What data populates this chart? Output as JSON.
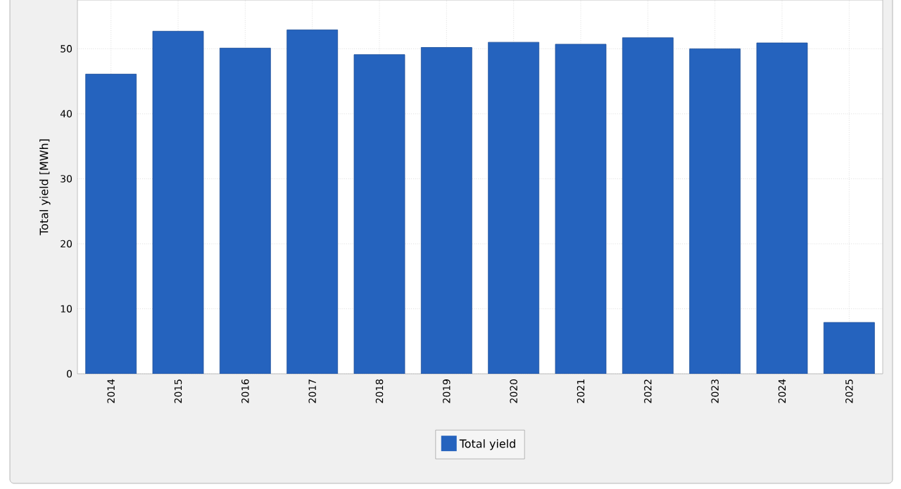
{
  "chart_data": {
    "type": "bar",
    "ylabel": "Total yield [MWh]",
    "categories": [
      "2014",
      "2015",
      "2016",
      "2017",
      "2018",
      "2019",
      "2020",
      "2021",
      "2022",
      "2023",
      "2024",
      "2025"
    ],
    "series": [
      {
        "name": "Total yield",
        "color": "#2563be",
        "values": [
          46.1,
          52.7,
          50.1,
          52.9,
          49.1,
          50.2,
          51.0,
          50.7,
          51.7,
          50.0,
          50.9,
          7.9
        ]
      }
    ],
    "ylim": [
      0,
      57.5
    ],
    "yticks": [
      0,
      10,
      20,
      30,
      40,
      50
    ],
    "grid": true,
    "legend": "bottom"
  }
}
